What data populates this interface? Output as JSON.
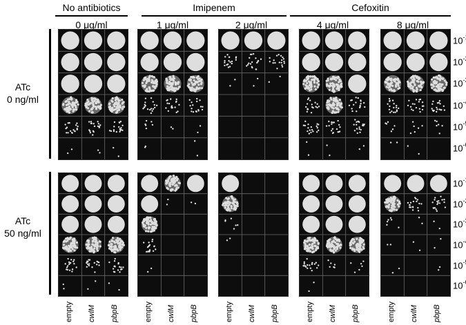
{
  "groups": [
    {
      "title": "No antibiotics"
    },
    {
      "title": "Imipenem"
    },
    {
      "title": "Cefoxitin"
    }
  ],
  "concentrations": [
    "0 μg/ml",
    "1 μg/ml",
    "2 μg/ml",
    "4 μg/ml",
    "8 μg/ml"
  ],
  "conditions": [
    {
      "line1": "ATc",
      "line2": "0 ng/ml"
    },
    {
      "line1": "ATc",
      "line2": "50 ng/ml"
    }
  ],
  "dilutions": [
    {
      "base": "10",
      "exp": "-1"
    },
    {
      "base": "10",
      "exp": "-2"
    },
    {
      "base": "10",
      "exp": "-3"
    },
    {
      "base": "10",
      "exp": "-4"
    },
    {
      "base": "10",
      "exp": "-5"
    },
    {
      "base": "10",
      "exp": "-6"
    }
  ],
  "strains": [
    {
      "label": "empty",
      "italic": false
    },
    {
      "label": "cwlM",
      "italic": true
    },
    {
      "label": "pbpB",
      "italic": true
    }
  ],
  "colors": {
    "plate": "#0d0d0d",
    "colony": "#dedede",
    "grid": "#6a6a6a"
  },
  "growth_levels": {
    "description_scale": "0 none, 1 trace, 2 few, 3 scattered, 4 dense speckled, 5 confluent",
    "top": [
      [
        [
          5,
          5,
          5
        ],
        [
          5,
          5,
          5
        ],
        [
          5,
          5,
          5
        ],
        [
          4,
          4,
          4
        ],
        [
          3,
          3,
          3
        ],
        [
          1,
          1,
          1
        ]
      ],
      [
        [
          5,
          5,
          5
        ],
        [
          5,
          5,
          5
        ],
        [
          4,
          4,
          4
        ],
        [
          3,
          3,
          3
        ],
        [
          2,
          1,
          1
        ],
        [
          1,
          0,
          1
        ]
      ],
      [
        [
          5,
          5,
          5
        ],
        [
          3,
          3,
          3
        ],
        [
          1,
          1,
          1
        ],
        [
          0,
          0,
          0
        ],
        [
          0,
          0,
          0
        ],
        [
          0,
          0,
          0
        ]
      ],
      [
        [
          5,
          5,
          5
        ],
        [
          5,
          5,
          5
        ],
        [
          4,
          4,
          5
        ],
        [
          3,
          4,
          3
        ],
        [
          3,
          3,
          3
        ],
        [
          1,
          1,
          1
        ]
      ],
      [
        [
          5,
          5,
          5
        ],
        [
          5,
          5,
          5
        ],
        [
          4,
          4,
          4
        ],
        [
          3,
          3,
          3
        ],
        [
          2,
          2,
          2
        ],
        [
          1,
          1,
          0
        ]
      ]
    ],
    "bottom": [
      [
        [
          5,
          5,
          5
        ],
        [
          5,
          5,
          5
        ],
        [
          5,
          5,
          5
        ],
        [
          4,
          4,
          4
        ],
        [
          3,
          3,
          3
        ],
        [
          1,
          1,
          1
        ]
      ],
      [
        [
          5,
          4,
          5
        ],
        [
          5,
          1,
          1
        ],
        [
          4,
          0,
          0
        ],
        [
          3,
          0,
          0
        ],
        [
          1,
          0,
          0
        ],
        [
          0,
          0,
          0
        ]
      ],
      [
        [
          5,
          0,
          0
        ],
        [
          4,
          0,
          0
        ],
        [
          2,
          0,
          0
        ],
        [
          1,
          0,
          0
        ],
        [
          0,
          0,
          0
        ],
        [
          0,
          0,
          0
        ]
      ],
      [
        [
          5,
          5,
          5
        ],
        [
          5,
          5,
          5
        ],
        [
          5,
          5,
          5
        ],
        [
          4,
          4,
          4
        ],
        [
          3,
          2,
          2
        ],
        [
          1,
          0,
          0
        ]
      ],
      [
        [
          5,
          5,
          5
        ],
        [
          4,
          3,
          3
        ],
        [
          2,
          1,
          1
        ],
        [
          1,
          1,
          1
        ],
        [
          1,
          0,
          1
        ],
        [
          0,
          0,
          0
        ]
      ]
    ]
  }
}
